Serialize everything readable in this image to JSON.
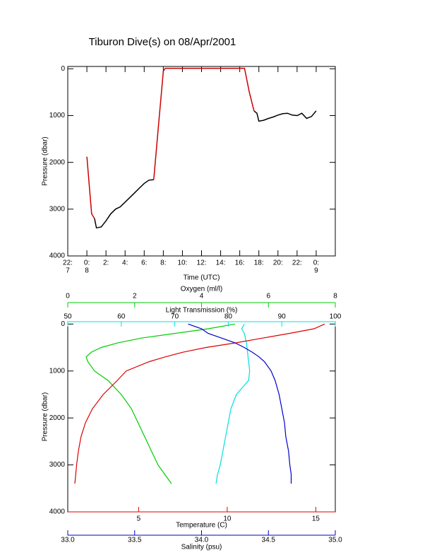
{
  "chart_data": [
    {
      "type": "line",
      "title": "Tiburon Dive(s) on 08/Apr/2001",
      "x_label": "Time (UTC)",
      "y_label": "Pressure (dbar)",
      "x": [
        0,
        0.5,
        0.8,
        1,
        1.5,
        2,
        2.5,
        3,
        3.5,
        4,
        4.5,
        5,
        5.5,
        6,
        6.5,
        7,
        7.5,
        8,
        8.2,
        10,
        12,
        14,
        16,
        16.5,
        17,
        17.5,
        17.8,
        18,
        18.5,
        19,
        19.5,
        20,
        20.5,
        21,
        21.5,
        22,
        22.5,
        23,
        23.5,
        24
      ],
      "series": [
        {
          "color": "#000000",
          "values": [
            null,
            null,
            3200,
            3400,
            3380,
            3250,
            3100,
            3000,
            2950,
            2850,
            2750,
            2650,
            2550,
            2450,
            2380,
            2370,
            null,
            null,
            null,
            null,
            null,
            null,
            null,
            null,
            null,
            900,
            950,
            1120,
            1100,
            1060,
            1030,
            990,
            960,
            950,
            990,
            1000,
            950,
            1060,
            1020,
            900
          ]
        },
        {
          "color": "#cc0000",
          "values": [
            1880,
            3100,
            3200,
            null,
            null,
            null,
            null,
            null,
            null,
            null,
            null,
            null,
            null,
            null,
            null,
            2370,
            1200,
            50,
            -10,
            -10,
            -10,
            -10,
            -10,
            -10,
            500,
            900,
            null,
            null,
            null,
            null,
            null,
            null,
            null,
            null,
            null,
            null,
            null,
            null,
            null,
            null
          ]
        }
      ],
      "xlim": [
        -2,
        26
      ],
      "xticks": [
        {
          "value": -2,
          "label": "22:",
          "sublabel": "7"
        },
        {
          "value": 0,
          "label": "0:",
          "sublabel": "8"
        },
        {
          "value": 2,
          "label": "2:"
        },
        {
          "value": 4,
          "label": "4:"
        },
        {
          "value": 6,
          "label": "6:"
        },
        {
          "value": 8,
          "label": "8:"
        },
        {
          "value": 10,
          "label": "10:"
        },
        {
          "value": 12,
          "label": "12:"
        },
        {
          "value": 14,
          "label": "14:"
        },
        {
          "value": 16,
          "label": "16:"
        },
        {
          "value": 18,
          "label": "18:"
        },
        {
          "value": 20,
          "label": "20:"
        },
        {
          "value": 22,
          "label": "22:"
        },
        {
          "value": 24,
          "label": "0:",
          "sublabel": "9"
        }
      ],
      "ylim": [
        4000,
        -50
      ],
      "yticks": [
        0,
        1000,
        2000,
        3000,
        4000
      ]
    },
    {
      "type": "profile",
      "y_label": "Pressure (dbar)",
      "pressure": [
        0,
        100,
        200,
        300,
        400,
        500,
        600,
        700,
        800,
        1000,
        1200,
        1500,
        1800,
        2100,
        2400,
        2700,
        3000,
        3200,
        3400
      ],
      "ylim": [
        4000,
        -50
      ],
      "yticks": [
        0,
        1000,
        2000,
        3000,
        4000
      ],
      "series": [
        {
          "axis_label": "Oxygen (ml/l)",
          "color": "#00cc00",
          "xlim": [
            0,
            8
          ],
          "xticks": [
            0,
            2,
            4,
            6,
            8
          ],
          "values": [
            5.0,
            4.2,
            3.2,
            2.2,
            1.5,
            1.0,
            0.7,
            0.55,
            0.6,
            0.8,
            1.2,
            1.6,
            1.9,
            2.1,
            2.3,
            2.5,
            2.7,
            2.9,
            3.1
          ]
        },
        {
          "axis_label": "Light Transmission (%)",
          "color": "#00e0e0",
          "xlim": [
            50,
            100
          ],
          "xticks": [
            50,
            60,
            70,
            80,
            90,
            100
          ],
          "values": [
            83,
            82.5,
            83,
            83.2,
            83.4,
            83.5,
            83.6,
            83.7,
            83.8,
            84,
            83.8,
            81.5,
            80.5,
            80,
            79.5,
            79,
            78.5,
            78,
            77.7
          ]
        },
        {
          "axis_label": "Temperature (C)",
          "color": "#dd0000",
          "xlim": [
            1,
            16.1
          ],
          "xticks": [
            5,
            10,
            15
          ],
          "values": [
            15.5,
            14.9,
            13.5,
            12.0,
            10.5,
            8.8,
            7.5,
            6.5,
            5.6,
            4.3,
            3.8,
            3.0,
            2.4,
            2.0,
            1.75,
            1.6,
            1.5,
            1.45,
            1.4
          ]
        },
        {
          "axis_label": "Salinity (psu)",
          "color": "#0000cc",
          "xlim": [
            33,
            35
          ],
          "xticks": [
            {
              "value": 33,
              "label": "33.0"
            },
            33.5,
            {
              "value": 34,
              "label": "34.0"
            },
            34.5,
            {
              "value": 35,
              "label": "35.0"
            }
          ],
          "values": [
            33.9,
            34.0,
            34.05,
            34.15,
            34.25,
            34.32,
            34.38,
            34.43,
            34.47,
            34.52,
            34.55,
            34.58,
            34.6,
            34.62,
            34.63,
            34.65,
            34.66,
            34.67,
            34.67
          ]
        }
      ]
    }
  ]
}
